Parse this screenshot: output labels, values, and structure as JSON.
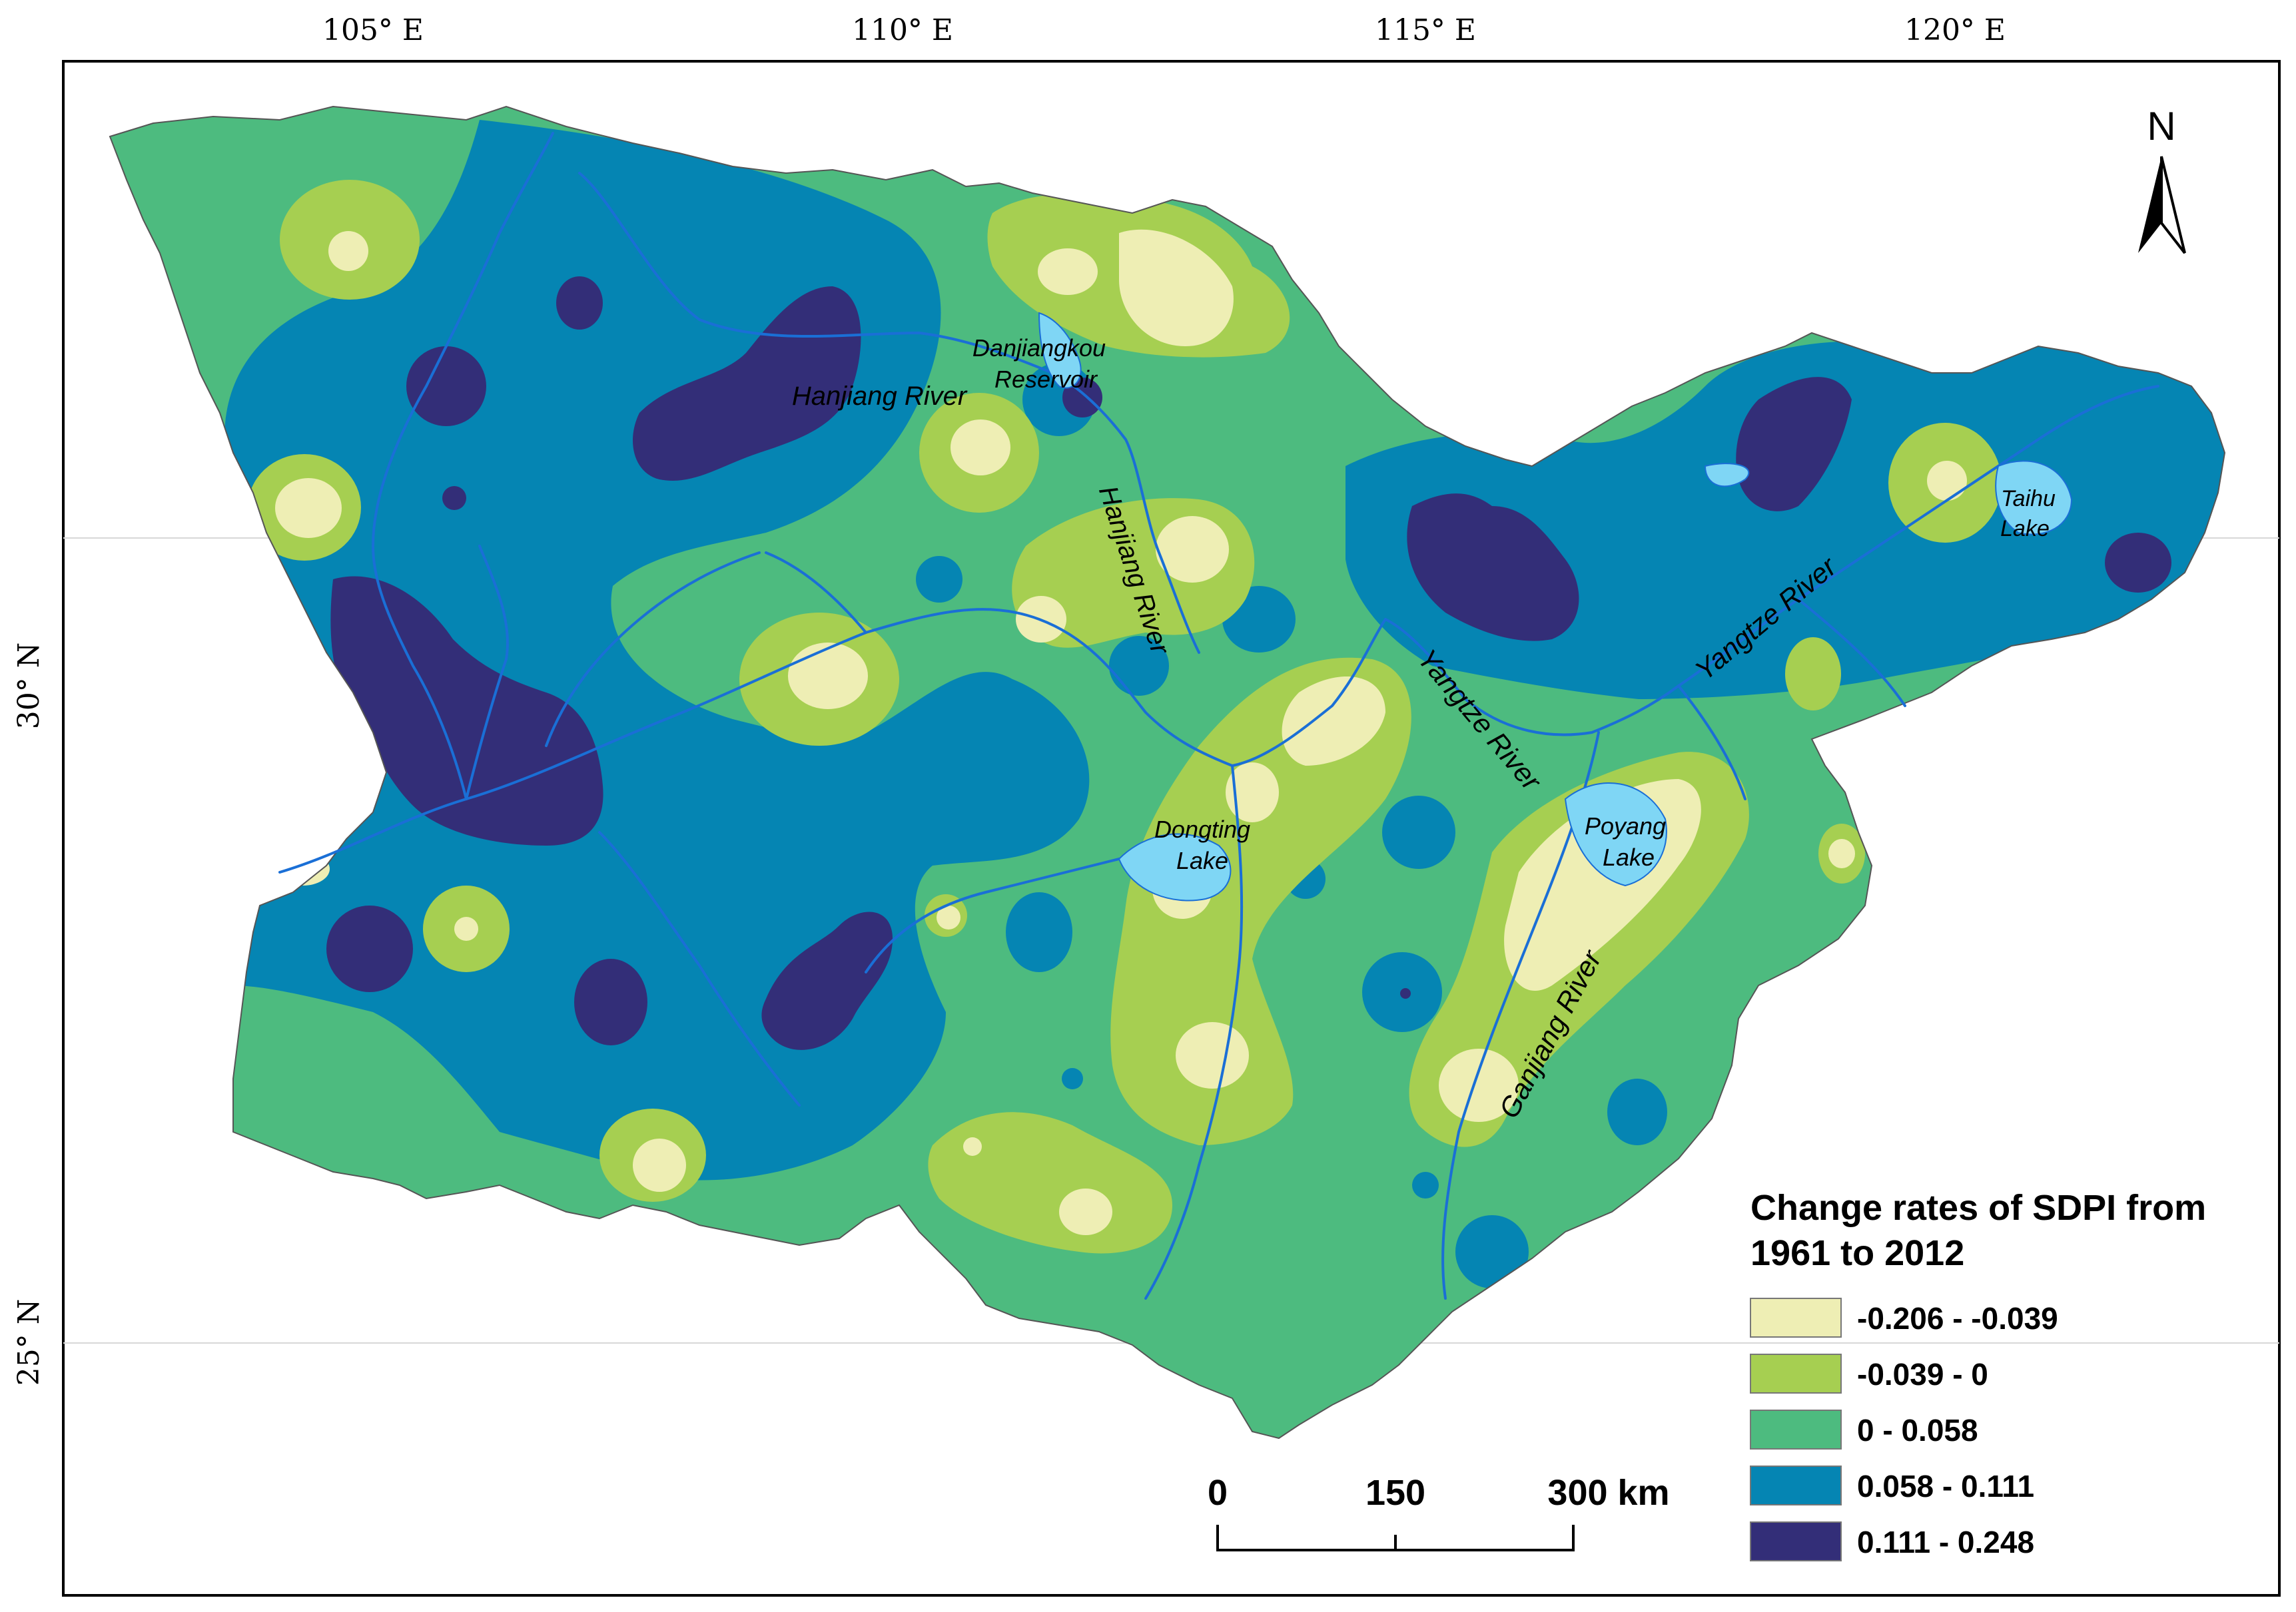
{
  "graticule": {
    "lon_labels": [
      "105° E",
      "110° E",
      "115° E",
      "120° E"
    ],
    "lat_labels": [
      "30° N",
      "25° N"
    ]
  },
  "north_arrow": {
    "label": "N"
  },
  "labels": {
    "danjiangkou": [
      "Danjiangkou",
      "Reservoir"
    ],
    "hanjiang_river_upper": "Hanjiang River",
    "hanjiang_river_lower": "Hanjiang River",
    "yangtze_river_mid": "Yangtze River",
    "yangtze_river_east": "Yangtze River",
    "dongting": [
      "Dongting",
      "Lake"
    ],
    "poyang": [
      "Poyang",
      "Lake"
    ],
    "ganjiang_river": "Ganjiang River",
    "taihu": [
      "Taihu",
      "Lake"
    ]
  },
  "legend": {
    "title_line1": "Change rates of SDPI from",
    "title_line2": "1961 to 2012",
    "classes": [
      {
        "label": "-0.206 - -0.039",
        "color": "#eeeeb4"
      },
      {
        "label": "-0.039 - 0",
        "color": "#a6cf51"
      },
      {
        "label": "0 - 0.058",
        "color": "#4dbb7f"
      },
      {
        "label": "0.058 - 0.111",
        "color": "#0585b3"
      },
      {
        "label": "0.111 - 0.248",
        "color": "#332e78"
      }
    ]
  },
  "scale_bar": {
    "ticks": [
      "0",
      "150",
      "300 km"
    ]
  },
  "colors": {
    "river": "#1a6fd6",
    "lake": "#7fd6f5",
    "frame": "#000000"
  }
}
